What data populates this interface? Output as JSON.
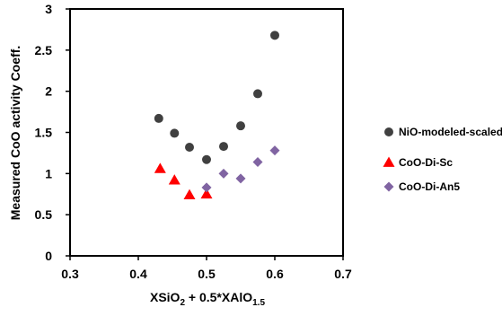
{
  "chart_data": {
    "type": "scatter",
    "xlim": [
      0.3,
      0.7
    ],
    "ylim": [
      0,
      3
    ],
    "x_ticks": [
      "0.3",
      "0.4",
      "0.5",
      "0.6",
      "0.7"
    ],
    "y_ticks": [
      "0",
      "0.5",
      "1",
      "1.5",
      "2",
      "2.5",
      "3"
    ],
    "ylabel": "Measured CoO activity Coeff.",
    "xlabel": {
      "parts": [
        {
          "text": "XSiO",
          "sub": false
        },
        {
          "text": "2",
          "sub": true
        },
        {
          "text": " + 0.5*XAlO",
          "sub": false
        },
        {
          "text": "1.5",
          "sub": true
        }
      ]
    },
    "grid": false,
    "legend_position": "right",
    "series": [
      {
        "name": "NiO-modeled-scaled",
        "marker": "circle",
        "color": "#404040",
        "points": [
          [
            0.43,
            1.67
          ],
          [
            0.453,
            1.49
          ],
          [
            0.475,
            1.32
          ],
          [
            0.5,
            1.17
          ],
          [
            0.525,
            1.33
          ],
          [
            0.55,
            1.58
          ],
          [
            0.575,
            1.97
          ],
          [
            0.6,
            2.68
          ]
        ]
      },
      {
        "name": "CoO-Di-Sc",
        "marker": "triangle",
        "color": "#ff0000",
        "points": [
          [
            0.432,
            1.06
          ],
          [
            0.453,
            0.92
          ],
          [
            0.475,
            0.74
          ],
          [
            0.5,
            0.75
          ]
        ]
      },
      {
        "name": "CoO-Di-An5",
        "marker": "diamond",
        "color": "#8064a2",
        "points": [
          [
            0.5,
            0.83
          ],
          [
            0.525,
            1.0
          ],
          [
            0.55,
            0.94
          ],
          [
            0.575,
            1.14
          ],
          [
            0.6,
            1.28
          ]
        ]
      }
    ]
  }
}
